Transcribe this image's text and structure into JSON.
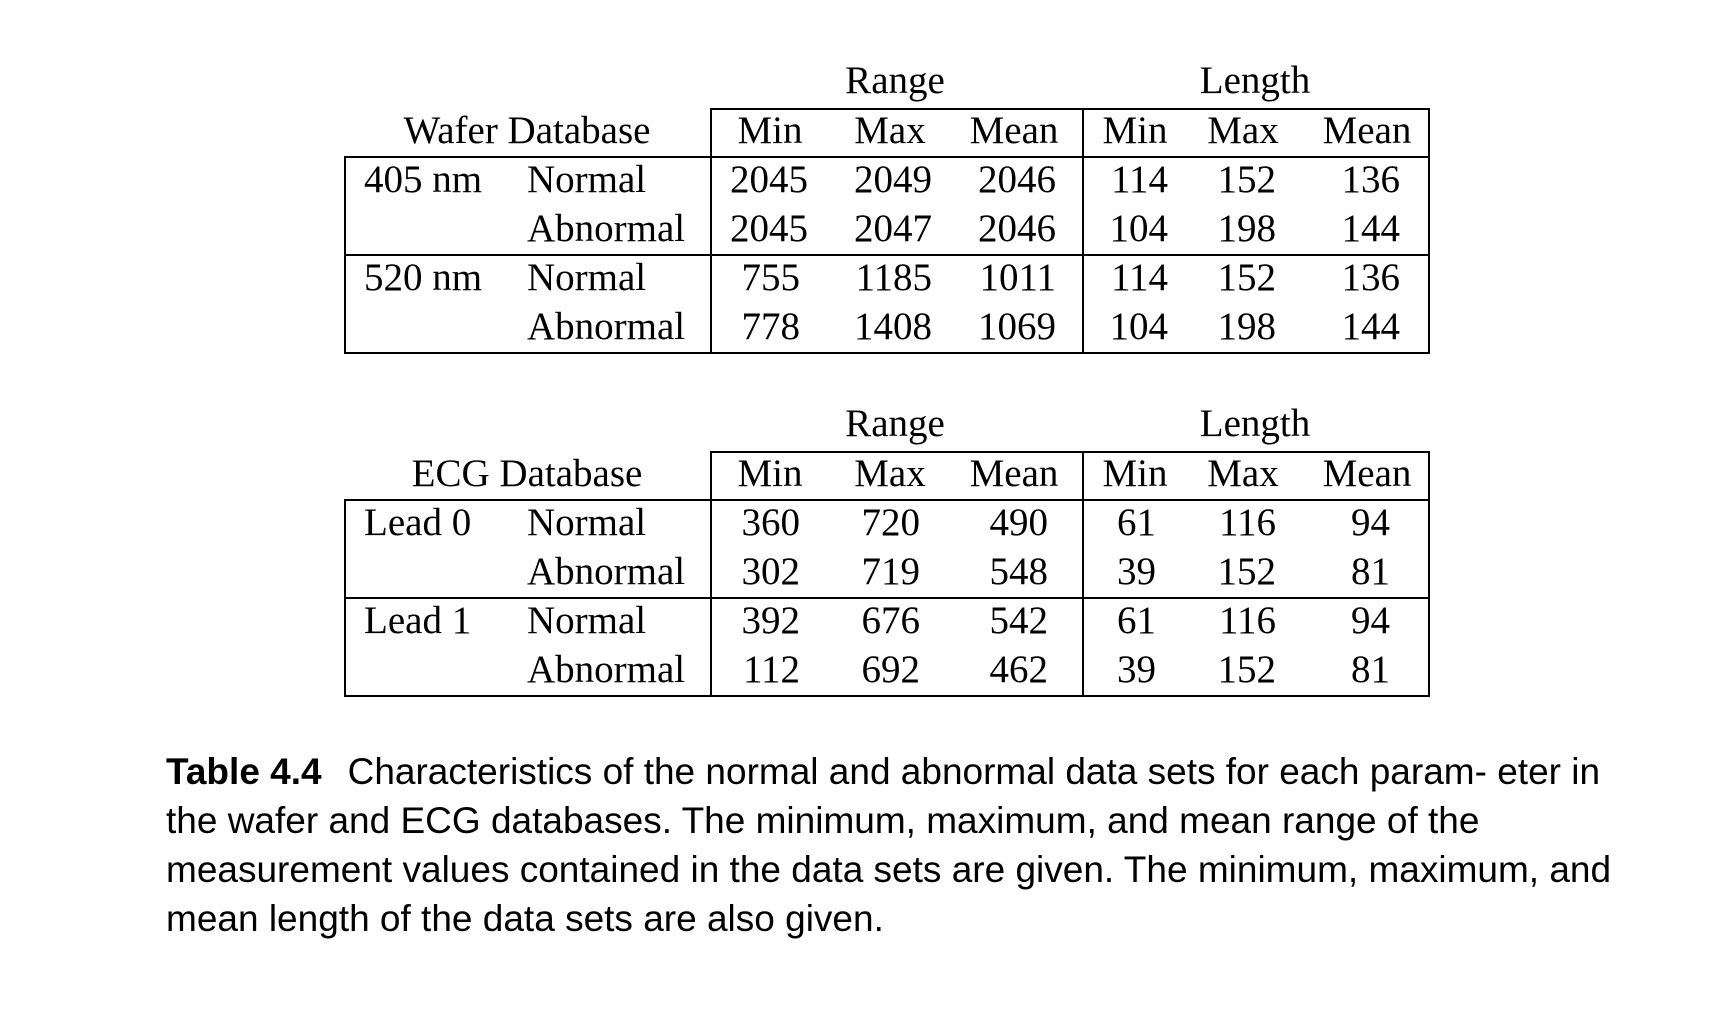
{
  "tables": [
    {
      "group_headers": [
        "Range",
        "Length"
      ],
      "db_label": "Wafer Database",
      "columns": [
        "Min",
        "Max",
        "Mean",
        "Min",
        "Max",
        "Mean"
      ],
      "groups": [
        {
          "name": "405 nm",
          "rows": [
            {
              "label": "Normal",
              "values": [
                "2045",
                "2049",
                "2046",
                "114",
                "152",
                "136"
              ]
            },
            {
              "label": "Abnormal",
              "values": [
                "2045",
                "2047",
                "2046",
                "104",
                "198",
                "144"
              ]
            }
          ]
        },
        {
          "name": "520 nm",
          "rows": [
            {
              "label": "Normal",
              "values": [
                "755",
                "1185",
                "1011",
                "114",
                "152",
                "136"
              ]
            },
            {
              "label": "Abnormal",
              "values": [
                "778",
                "1408",
                "1069",
                "104",
                "198",
                "144"
              ]
            }
          ]
        }
      ]
    },
    {
      "group_headers": [
        "Range",
        "Length"
      ],
      "db_label": "ECG Database",
      "columns": [
        "Min",
        "Max",
        "Mean",
        "Min",
        "Max",
        "Mean"
      ],
      "groups": [
        {
          "name": "Lead 0",
          "rows": [
            {
              "label": "Normal",
              "values": [
                "360",
                "720",
                "490",
                "61",
                "116",
                "94"
              ]
            },
            {
              "label": "Abnormal",
              "values": [
                "302",
                "719",
                "548",
                "39",
                "152",
                "81"
              ]
            }
          ]
        },
        {
          "name": "Lead 1",
          "rows": [
            {
              "label": "Normal",
              "values": [
                "392",
                "676",
                "542",
                "61",
                "116",
                "94"
              ]
            },
            {
              "label": "Abnormal",
              "values": [
                "112",
                "692",
                "462",
                "39",
                "152",
                "81"
              ]
            }
          ]
        }
      ]
    }
  ],
  "caption": {
    "label": "Table 4.4",
    "text": "Characteristics of the normal and abnormal data sets for each param- eter in the wafer and ECG databases. The minimum, maximum, and mean range of the measurement values contained in the data sets are given. The minimum, maximum, and mean length of the data sets are also given."
  }
}
